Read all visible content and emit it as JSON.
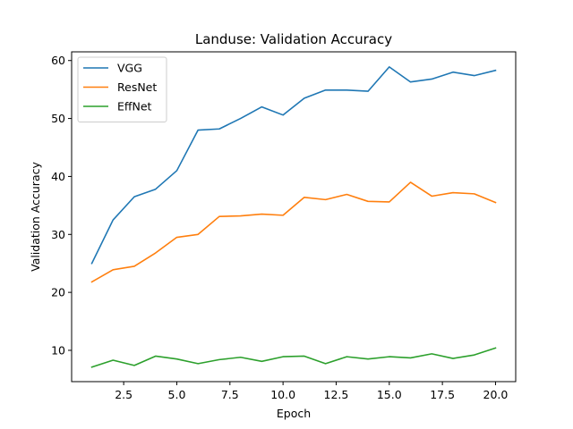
{
  "chart_data": {
    "type": "line",
    "title": "Landuse: Validation Accuracy",
    "xlabel": "Epoch",
    "ylabel": "Validation Accuracy",
    "xlim": [
      0.05,
      20.95
    ],
    "ylim": [
      4.6,
      61.5
    ],
    "xticks": [
      2.5,
      5.0,
      7.5,
      10.0,
      12.5,
      15.0,
      17.5,
      20.0
    ],
    "xtick_labels": [
      "2.5",
      "5.0",
      "7.5",
      "10.0",
      "12.5",
      "15.0",
      "17.5",
      "20.0"
    ],
    "yticks": [
      10,
      20,
      30,
      40,
      50,
      60
    ],
    "ytick_labels": [
      "10",
      "20",
      "30",
      "40",
      "50",
      "60"
    ],
    "grid": false,
    "legend_position": "top-left",
    "x": [
      1,
      2,
      3,
      4,
      5,
      6,
      7,
      8,
      9,
      10,
      11,
      12,
      13,
      14,
      15,
      16,
      17,
      18,
      19,
      20
    ],
    "series": [
      {
        "name": "VGG",
        "color": "#1f77b4",
        "values": [
          25.0,
          32.5,
          36.5,
          37.8,
          41.0,
          48.0,
          48.2,
          50.0,
          52.0,
          50.6,
          53.5,
          54.9,
          54.9,
          54.7,
          58.9,
          56.3,
          56.8,
          58.0,
          57.4,
          58.3
        ]
      },
      {
        "name": "ResNet",
        "color": "#ff7f0e",
        "values": [
          21.8,
          23.9,
          24.5,
          26.8,
          29.5,
          30.0,
          33.1,
          33.2,
          33.5,
          33.3,
          36.4,
          36.0,
          36.9,
          35.7,
          35.6,
          39.0,
          36.6,
          37.2,
          37.0,
          35.5
        ]
      },
      {
        "name": "EffNet",
        "color": "#2ca02c",
        "values": [
          7.1,
          8.3,
          7.4,
          9.0,
          8.5,
          7.7,
          8.4,
          8.8,
          8.1,
          8.9,
          9.0,
          7.7,
          8.9,
          8.5,
          8.9,
          8.7,
          9.4,
          8.6,
          9.2,
          10.4
        ]
      }
    ]
  }
}
